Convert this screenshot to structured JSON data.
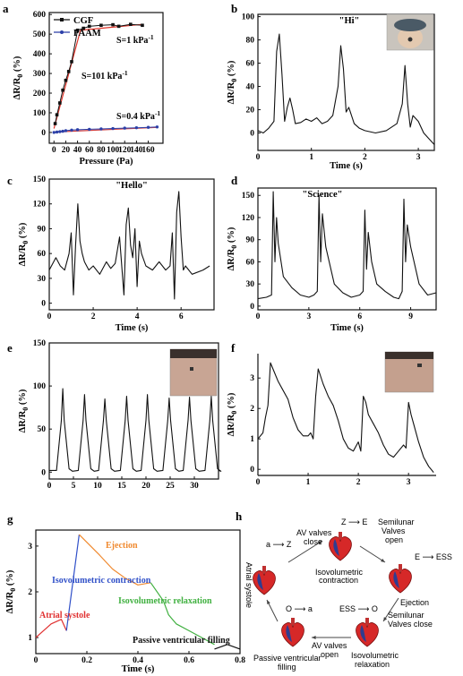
{
  "panels": [
    "a",
    "b",
    "c",
    "d",
    "e",
    "f",
    "g",
    "h"
  ],
  "colors": {
    "black": "#111111",
    "cgf": "#111111",
    "cgf_fit": "#e0352b",
    "paam": "#2b3fa8",
    "paam_fit": "#d04040",
    "atrial": "#e03030",
    "isovol": "#3050c8",
    "ejection": "#f08a30",
    "relax": "#40b040",
    "passive": "#111111"
  },
  "chart_data": [
    {
      "panel": "a",
      "type": "line",
      "xlabel": "Pressure (Pa)",
      "ylabel": "ΔR/R0 (%)",
      "xlim": [
        -8,
        185
      ],
      "ylim": [
        -55,
        610
      ],
      "xticks": [
        0,
        20,
        40,
        60,
        80,
        100,
        120,
        140,
        160
      ],
      "yticks": [
        0,
        100,
        200,
        300,
        400,
        500,
        600
      ],
      "legend": [
        {
          "name": "CGF",
          "marker": "square"
        },
        {
          "name": "PAAM",
          "marker": "circle"
        }
      ],
      "annotations": [
        "S=1 kPa-1",
        "S=101 kPa-1",
        "S=0.4 kPa-1"
      ],
      "series": [
        {
          "name": "CGF",
          "x": [
            2,
            5,
            10,
            15,
            20,
            25,
            30,
            40,
            50,
            60,
            80,
            100,
            110,
            130,
            150
          ],
          "y": [
            45,
            90,
            150,
            215,
            265,
            310,
            360,
            520,
            530,
            540,
            545,
            548,
            540,
            550,
            545
          ]
        },
        {
          "name": "PAAM",
          "x": [
            0,
            5,
            10,
            15,
            20,
            30,
            40,
            60,
            80,
            100,
            120,
            140,
            160,
            175
          ],
          "y": [
            0,
            2,
            4,
            6,
            9,
            12,
            14,
            16,
            18,
            20,
            22,
            24,
            26,
            28
          ]
        }
      ]
    },
    {
      "panel": "b",
      "type": "line",
      "title": "\"Hi\"",
      "xlabel": "Time (s)",
      "ylabel": "ΔR/R0 (%)",
      "xlim": [
        0,
        3.3
      ],
      "ylim": [
        -15,
        102
      ],
      "xticks": [
        0,
        1,
        2,
        3
      ],
      "yticks": [
        0,
        20,
        40,
        60,
        80,
        100
      ],
      "x": [
        0,
        0.1,
        0.2,
        0.3,
        0.35,
        0.4,
        0.45,
        0.5,
        0.55,
        0.6,
        0.65,
        0.7,
        0.8,
        0.9,
        1.0,
        1.1,
        1.2,
        1.3,
        1.4,
        1.5,
        1.55,
        1.6,
        1.65,
        1.7,
        1.75,
        1.8,
        1.9,
        2.0,
        2.2,
        2.4,
        2.6,
        2.7,
        2.75,
        2.8,
        2.85,
        2.9,
        3.0,
        3.1,
        3.2,
        3.3
      ],
      "y": [
        2,
        0,
        4,
        10,
        70,
        85,
        50,
        10,
        22,
        30,
        20,
        8,
        9,
        12,
        10,
        13,
        8,
        10,
        15,
        40,
        75,
        55,
        18,
        22,
        15,
        8,
        4,
        2,
        0,
        2,
        8,
        25,
        58,
        25,
        5,
        15,
        10,
        0,
        -5,
        -10
      ]
    },
    {
      "panel": "c",
      "type": "line",
      "title": "\"Hello\"",
      "xlabel": "Time (s)",
      "ylabel": "ΔR/R0 (%)",
      "xlim": [
        0,
        7.5
      ],
      "ylim": [
        -8,
        150
      ],
      "xticks": [
        0,
        2,
        4,
        6
      ],
      "yticks": [
        0,
        30,
        60,
        90,
        120,
        150
      ],
      "x": [
        0,
        0.3,
        0.5,
        0.7,
        0.9,
        1.0,
        1.1,
        1.2,
        1.3,
        1.4,
        1.5,
        1.6,
        1.8,
        2.0,
        2.3,
        2.6,
        2.8,
        3.0,
        3.2,
        3.4,
        3.5,
        3.6,
        3.7,
        3.8,
        3.9,
        4.0,
        4.1,
        4.2,
        4.4,
        4.7,
        5.0,
        5.3,
        5.5,
        5.6,
        5.7,
        5.8,
        5.9,
        6.0,
        6.1,
        6.2,
        6.5,
        7.0,
        7.3
      ],
      "y": [
        40,
        55,
        45,
        40,
        60,
        85,
        10,
        70,
        120,
        75,
        60,
        50,
        40,
        45,
        35,
        50,
        42,
        48,
        80,
        10,
        95,
        115,
        70,
        55,
        90,
        20,
        75,
        60,
        45,
        40,
        50,
        40,
        45,
        85,
        5,
        110,
        135,
        80,
        40,
        45,
        35,
        40,
        45
      ]
    },
    {
      "panel": "d",
      "type": "line",
      "title": "\"Science\"",
      "xlabel": "Time (s)",
      "ylabel": "ΔR/R0 (%)",
      "xlim": [
        0,
        10.5
      ],
      "ylim": [
        -5,
        160
      ],
      "xticks": [
        0,
        3,
        6,
        9
      ],
      "yticks": [
        0,
        30,
        60,
        90,
        120,
        150
      ],
      "x": [
        0,
        0.5,
        0.8,
        0.9,
        1.0,
        1.1,
        1.2,
        1.5,
        2.0,
        2.5,
        3.0,
        3.3,
        3.5,
        3.6,
        3.7,
        3.8,
        4.0,
        4.5,
        5.0,
        5.5,
        6.0,
        6.2,
        6.3,
        6.4,
        6.5,
        6.7,
        7.0,
        7.5,
        8.0,
        8.3,
        8.5,
        8.6,
        8.7,
        8.8,
        9.0,
        9.5,
        10.0,
        10.5
      ],
      "y": [
        10,
        12,
        15,
        155,
        60,
        120,
        85,
        40,
        25,
        15,
        12,
        15,
        20,
        150,
        60,
        125,
        80,
        30,
        18,
        12,
        15,
        20,
        130,
        50,
        100,
        60,
        30,
        20,
        12,
        10,
        20,
        145,
        60,
        110,
        80,
        30,
        15,
        18
      ]
    },
    {
      "panel": "e",
      "type": "line",
      "xlabel": "",
      "ylabel": "ΔR/R0 (%)",
      "xlim": [
        0,
        35
      ],
      "ylim": [
        -8,
        150
      ],
      "xticks": [
        0,
        5,
        10,
        15,
        20,
        25,
        30
      ],
      "yticks": [
        0,
        50,
        100,
        150
      ],
      "peaks": [
        2.8,
        7.3,
        11.5,
        16.0,
        20.3,
        24.8,
        29.0,
        33.5
      ],
      "peak_values": [
        97,
        90,
        85,
        88,
        90,
        86,
        87,
        88
      ]
    },
    {
      "panel": "f",
      "type": "line",
      "xlabel": "",
      "ylabel": "ΔR/R0 (%)",
      "xlim": [
        0,
        3.55
      ],
      "ylim": [
        -0.2,
        3.8
      ],
      "xticks": [
        0,
        1,
        2,
        3
      ],
      "yticks": [
        0,
        1,
        2,
        3
      ],
      "x": [
        0,
        0.1,
        0.15,
        0.2,
        0.25,
        0.3,
        0.4,
        0.5,
        0.6,
        0.7,
        0.8,
        0.9,
        1.0,
        1.05,
        1.1,
        1.15,
        1.2,
        1.3,
        1.4,
        1.5,
        1.6,
        1.7,
        1.8,
        1.9,
        2.0,
        2.05,
        2.1,
        2.15,
        2.2,
        2.3,
        2.4,
        2.5,
        2.6,
        2.7,
        2.8,
        2.9,
        2.95,
        3.0,
        3.05,
        3.1,
        3.2,
        3.3,
        3.4,
        3.5
      ],
      "y": [
        1.0,
        1.2,
        1.7,
        2.1,
        3.5,
        3.3,
        2.9,
        2.6,
        2.3,
        1.7,
        1.3,
        1.1,
        1.1,
        1.2,
        1.0,
        2.4,
        3.3,
        2.8,
        2.4,
        2.1,
        1.6,
        1.0,
        0.7,
        0.6,
        0.9,
        0.6,
        2.4,
        2.2,
        1.8,
        1.5,
        1.2,
        0.8,
        0.5,
        0.4,
        0.6,
        0.8,
        0.7,
        2.2,
        1.8,
        1.5,
        0.9,
        0.4,
        0.1,
        -0.1
      ]
    },
    {
      "panel": "g",
      "type": "line",
      "xlabel": "Time (s)",
      "ylabel": "ΔR/R0 (%)",
      "xlim": [
        0,
        0.8
      ],
      "ylim": [
        0.65,
        3.35
      ],
      "xticks": [
        0,
        0.2,
        0.4,
        0.6,
        0.8
      ],
      "yticks": [
        1,
        2,
        3
      ],
      "series": [
        {
          "name": "Atrial systole",
          "x": [
            0,
            0.06,
            0.1,
            0.12
          ],
          "y": [
            1.0,
            1.3,
            1.4,
            1.15
          ]
        },
        {
          "name": "Isovolumetric contraction",
          "x": [
            0.12,
            0.17
          ],
          "y": [
            1.15,
            3.25
          ]
        },
        {
          "name": "Ejection",
          "x": [
            0.17,
            0.25,
            0.3,
            0.35,
            0.4,
            0.45
          ],
          "y": [
            3.25,
            2.8,
            2.5,
            2.3,
            2.15,
            2.2
          ]
        },
        {
          "name": "Isovolumetric relaxation",
          "x": [
            0.45,
            0.5,
            0.52,
            0.55,
            0.6,
            0.65,
            0.7
          ],
          "y": [
            2.2,
            1.8,
            1.5,
            1.3,
            1.15,
            1.0,
            0.85
          ]
        },
        {
          "name": "Passive ventricular filling",
          "x": [
            0.7,
            0.75,
            0.8
          ],
          "y": [
            0.75,
            0.85,
            0.75
          ]
        }
      ]
    }
  ],
  "text": {
    "a_legend_cgf": "CGF",
    "a_legend_paam": "PAAM",
    "a_s1": "S=1 kPa",
    "a_s1_sup": "-1",
    "a_s101": "S=101 kPa",
    "a_s101_sup": "-1",
    "a_s04": "S=0.4 kPa",
    "a_s04_sup": "-1",
    "ylab": "ΔR/R",
    "ylab_sub": "0",
    "ylab_tail": " (%)",
    "time": "Time (s)",
    "pressure": "Pressure (Pa)",
    "hi": "\"Hi\"",
    "hello": "\"Hello\"",
    "science": "\"Science\"",
    "g_atrial": "Atrial systole",
    "g_isovol": "Isovolumetric contraction",
    "g_eject": "Ejection",
    "g_relax": "Isovolumetric relaxation",
    "g_passive": "Passive ventricular filling"
  },
  "cycle": {
    "z_to_e": "Z ⟶ E",
    "a_to_z": "a ⟶ Z",
    "e_to_ess": "E ⟶ ESS",
    "ess_to_o": "ESS ⟶ O",
    "o_to_a": "O ⟶ a",
    "av_close1": "AV valves",
    "av_close2": "close",
    "semi_open1": "Semilunar",
    "semi_open2": "Valves",
    "semi_open3": "open",
    "iso_con1": "Isovolumetric",
    "iso_con2": "contraction",
    "ejection": "Ejection",
    "semi_close1": "Semilunar",
    "semi_close2": "Valves close",
    "iso_rel1": "Isovolumetric",
    "iso_rel2": "relaxation",
    "av_open1": "AV valves",
    "av_open2": "open",
    "passive1": "Passive ventricular",
    "passive2": "filling",
    "atrial": "Atrial systole"
  }
}
